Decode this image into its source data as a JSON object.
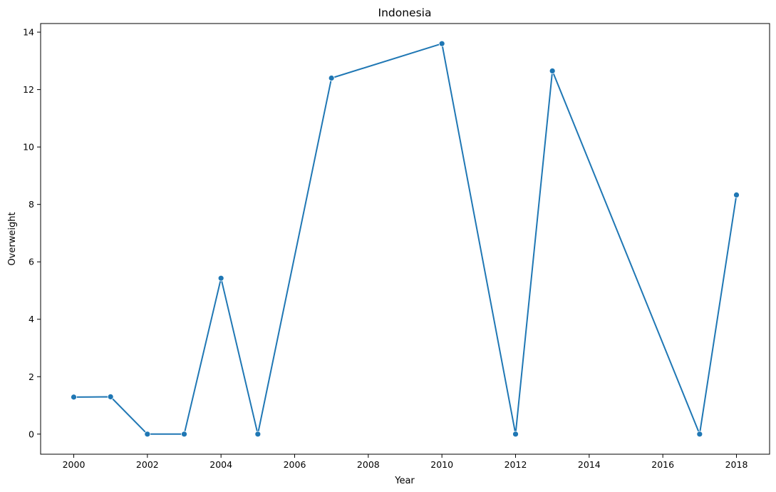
{
  "chart_data": {
    "type": "line",
    "title": "Indonesia",
    "xlabel": "Year",
    "ylabel": "Overweight",
    "xlim": [
      1999.1,
      2018.9
    ],
    "ylim": [
      -0.7,
      14.3
    ],
    "x_ticks": [
      2000,
      2002,
      2004,
      2006,
      2008,
      2010,
      2012,
      2014,
      2016,
      2018
    ],
    "y_ticks": [
      0,
      2,
      4,
      6,
      8,
      10,
      12,
      14
    ],
    "grid": false,
    "series": [
      {
        "color": "#1f77b4",
        "marker": "circle",
        "x": [
          2000,
          2001,
          2002,
          2003,
          2004,
          2005,
          2007,
          2010,
          2012,
          2013,
          2017,
          2018
        ],
        "y": [
          1.29,
          1.3,
          0.0,
          0.0,
          5.43,
          0.0,
          12.4,
          13.6,
          0.0,
          12.65,
          0.0,
          8.33
        ]
      }
    ]
  }
}
